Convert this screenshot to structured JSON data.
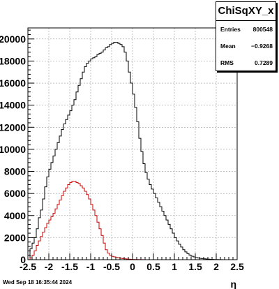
{
  "chart_data": {
    "type": "histogram",
    "xlabel": "η",
    "ylabel": "",
    "xlim": [
      -2.5,
      2.5
    ],
    "ylim": [
      0,
      21000
    ],
    "x_ticks": [
      "-2.5",
      "-2",
      "-1.5",
      "-1",
      "-0.5",
      "0",
      "0.5",
      "1",
      "1.5",
      "2",
      "2.5"
    ],
    "y_ticks": [
      "0",
      "2000",
      "4000",
      "6000",
      "8000",
      "10000",
      "12000",
      "14000",
      "16000",
      "18000",
      "20000"
    ],
    "grid": true,
    "bin_width": 0.05,
    "series": [
      {
        "color": "#000000",
        "x_start": -2.5,
        "values": [
          0,
          1000,
          1500,
          2000,
          2800,
          3800,
          4500,
          5500,
          6600,
          7500,
          8200,
          8800,
          9400,
          10000,
          10600,
          11200,
          11800,
          12300,
          12700,
          13100,
          13500,
          14000,
          14500,
          15200,
          15800,
          16400,
          17000,
          17500,
          17800,
          18000,
          18200,
          18300,
          18400,
          18600,
          18700,
          18800,
          19000,
          19200,
          19300,
          19500,
          19600,
          19700,
          19700,
          19600,
          19500,
          19300,
          18800,
          18000,
          17000,
          16000,
          15000,
          13800,
          12500,
          11000,
          9800,
          8700,
          7900,
          7300,
          6800,
          6400,
          6000,
          5600,
          5200,
          4800,
          4400,
          4000,
          3600,
          3200,
          2800,
          2400,
          2000,
          1700,
          1400,
          1150,
          900,
          700,
          550,
          420,
          320,
          250,
          190,
          150,
          120,
          100,
          80,
          60,
          45,
          35,
          25,
          18,
          12,
          8,
          5,
          3,
          2,
          1,
          0,
          0,
          0,
          0
        ]
      },
      {
        "color": "#cc0000",
        "x_start": -2.5,
        "values": [
          0,
          150,
          400,
          800,
          1300,
          1700,
          2100,
          2500,
          2900,
          3300,
          3600,
          3900,
          4200,
          4600,
          5000,
          5400,
          5800,
          6200,
          6500,
          6800,
          7000,
          7100,
          7100,
          7000,
          6900,
          6700,
          6500,
          6200,
          5900,
          5500,
          5000,
          4500,
          4000,
          3400,
          2800,
          2200,
          1500,
          900,
          600,
          400,
          300,
          250,
          200,
          160,
          130,
          100,
          80,
          60,
          45,
          35,
          25,
          18,
          12,
          8,
          5,
          3,
          2,
          1,
          0,
          0,
          0,
          0,
          0,
          0,
          0,
          0,
          0,
          0,
          0,
          0,
          0,
          0,
          0,
          0,
          0,
          0,
          0,
          0,
          0,
          0,
          0,
          0,
          0,
          0,
          0,
          0,
          0,
          0,
          0,
          0,
          0,
          0,
          0,
          0,
          0,
          0,
          0,
          0,
          0,
          0
        ]
      }
    ]
  },
  "stats": {
    "title": "ChiSqXY_x",
    "entries_label": "Entries",
    "entries_value": "800548",
    "mean_label": "Mean",
    "mean_value": "−0.9268",
    "rms_label": "RMS",
    "rms_value": "0.7289"
  },
  "footer": {
    "timestamp": "Wed Sep 18 16:35:44 2024"
  }
}
